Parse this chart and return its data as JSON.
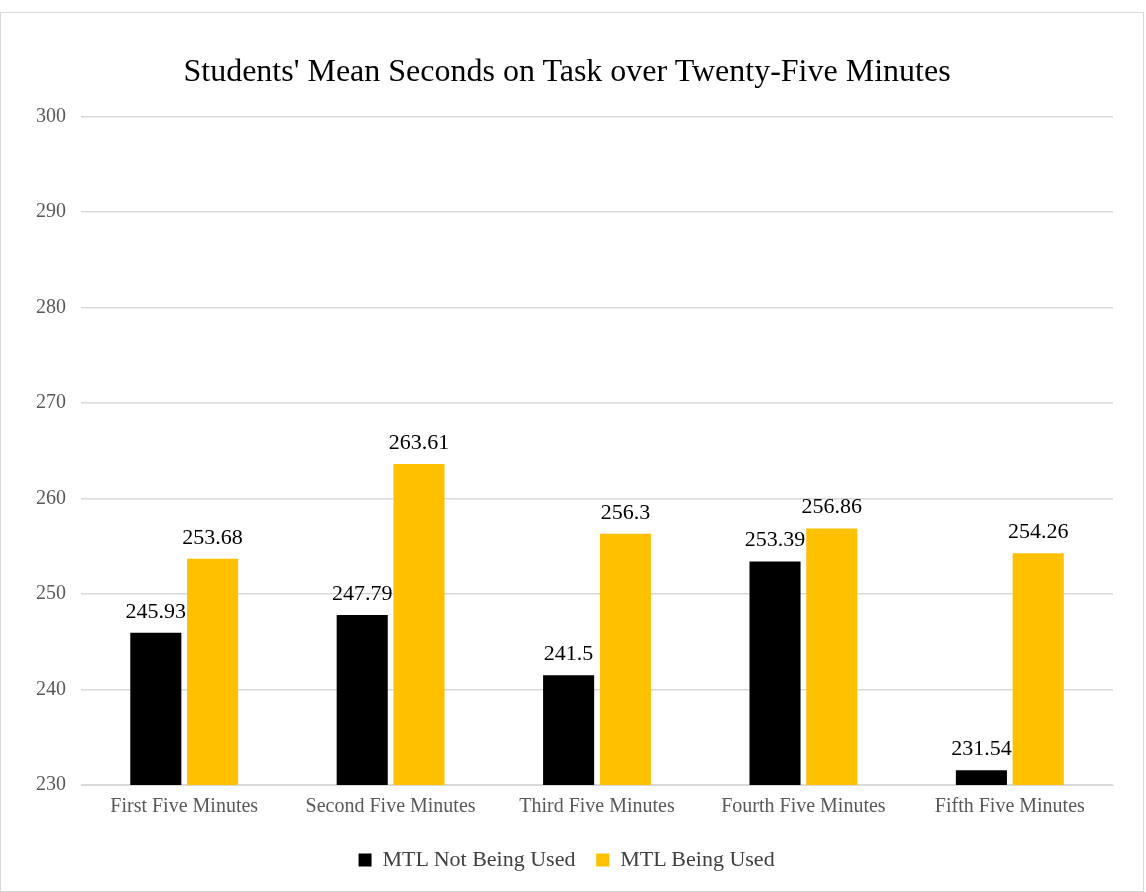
{
  "chart_data": {
    "type": "bar",
    "title": "Students' Mean Seconds on Task over Twenty-Five Minutes",
    "categories": [
      "First Five Minutes",
      "Second Five Minutes",
      "Third Five Minutes",
      "Fourth Five Minutes",
      "Fifth Five Minutes"
    ],
    "series": [
      {
        "name": "MTL Not Being Used",
        "color": "#000000",
        "values": [
          245.93,
          247.79,
          241.5,
          253.39,
          231.54
        ]
      },
      {
        "name": "MTL Being Used",
        "color": "#ffc000",
        "values": [
          253.68,
          263.61,
          256.3,
          256.86,
          254.26
        ]
      }
    ],
    "ylim": [
      230,
      300
    ],
    "yticks": [
      230,
      240,
      250,
      260,
      270,
      280,
      290,
      300
    ],
    "grid": "y",
    "legend": "bottom",
    "data_labels": true
  }
}
